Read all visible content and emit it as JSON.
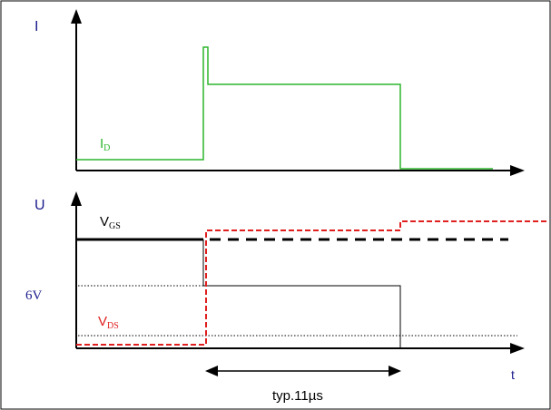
{
  "top_panel": {
    "y_axis_label": "I",
    "current_label_main": "I",
    "current_label_sub": "D"
  },
  "bottom_panel": {
    "y_axis_label": "U",
    "x_axis_label": "t",
    "vgs_label_main": "V",
    "vgs_label_sub": "GS",
    "vds_label_main": "V",
    "vds_label_sub": "DS",
    "threshold_label": "6V",
    "duration_label": "typ.11µs"
  },
  "colors": {
    "axis": "#000000",
    "id_trace": "#2db52d",
    "vgs_trace": "#000000",
    "vds_trace": "#e02020",
    "axis_label": "#1a1a8c",
    "frame": "#000000"
  }
}
